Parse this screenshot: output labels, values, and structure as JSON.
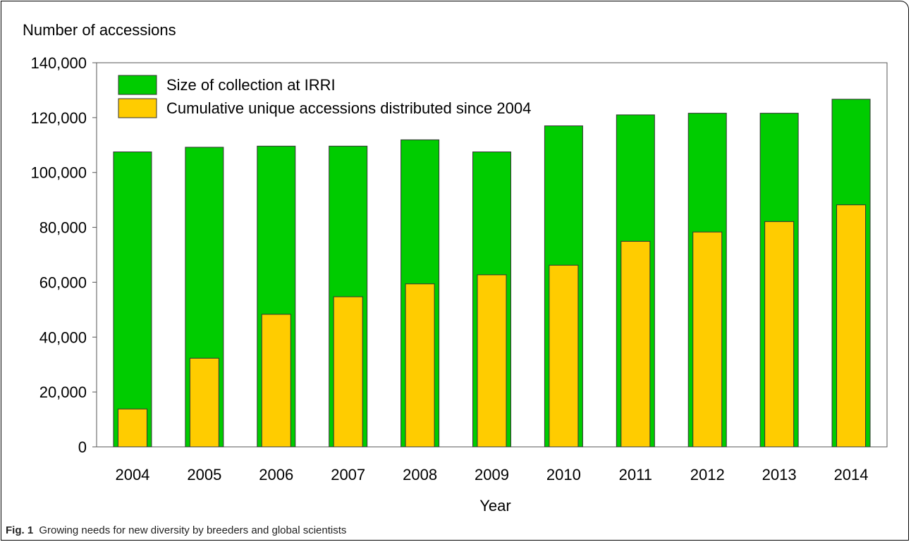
{
  "chart_data": {
    "type": "bar",
    "title": "",
    "ylabel": "Number of accessions",
    "xlabel": "Year",
    "categories": [
      "2004",
      "2005",
      "2006",
      "2007",
      "2008",
      "2009",
      "2010",
      "2011",
      "2012",
      "2013",
      "2014"
    ],
    "series": [
      {
        "name": "Size of collection at IRRI",
        "color": "#00cc00",
        "values": [
          107500,
          109200,
          109600,
          109600,
          111900,
          107500,
          117000,
          121000,
          121600,
          121600,
          126700
        ]
      },
      {
        "name": "Cumulative unique accessions distributed since 2004",
        "color": "#ffcc00",
        "values": [
          13800,
          32300,
          48300,
          54700,
          59400,
          62700,
          66200,
          74900,
          78300,
          82100,
          88200
        ]
      }
    ],
    "ylim": [
      0,
      140000
    ],
    "yticks": [
      "0",
      "20,000",
      "40,000",
      "60,000",
      "80,000",
      "100,000",
      "120,000",
      "140,000"
    ],
    "ytick_values": [
      0,
      20000,
      40000,
      60000,
      80000,
      100000,
      120000,
      140000
    ],
    "legend_position": "top-left",
    "grid": false
  },
  "caption": {
    "label": "Fig. 1",
    "text": "Growing needs for new diversity by breeders and global scientists"
  }
}
